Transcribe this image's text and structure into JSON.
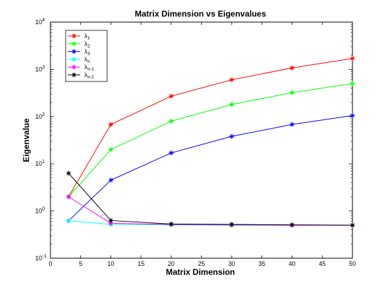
{
  "chart_data": {
    "type": "line",
    "title": "Matrix Dimension vs Eigenvalues",
    "xlabel": "Matrix Dimension",
    "ylabel": "Eigenvalue",
    "xlim": [
      0,
      50
    ],
    "ylim": [
      0.1,
      10000
    ],
    "yscale": "log",
    "grid": false,
    "legend_position": "top-left",
    "x_ticks": [
      0,
      5,
      10,
      15,
      20,
      25,
      30,
      35,
      40,
      45,
      50
    ],
    "y_ticks": [
      {
        "value": 0.1,
        "base": "10",
        "exp": "-1"
      },
      {
        "value": 1,
        "base": "10",
        "exp": "0"
      },
      {
        "value": 10,
        "base": "10",
        "exp": "1"
      },
      {
        "value": 100,
        "base": "10",
        "exp": "2"
      },
      {
        "value": 1000,
        "base": "10",
        "exp": "3"
      },
      {
        "value": 10000,
        "base": "10",
        "exp": "4"
      }
    ],
    "x": [
      3,
      10,
      20,
      30,
      40,
      50
    ],
    "series": [
      {
        "name": "λ1",
        "symbol": "λ",
        "subscript": "1",
        "color": "#ff0000",
        "values": [
          2.0,
          68,
          270,
          600,
          1070,
          1700
        ]
      },
      {
        "name": "λ2",
        "symbol": "λ",
        "subscript": "2",
        "color": "#00ff00",
        "values": [
          2.0,
          20,
          80,
          180,
          320,
          500
        ]
      },
      {
        "name": "λ3",
        "symbol": "λ",
        "subscript": "3",
        "color": "#0000ff",
        "values": [
          0.62,
          4.5,
          17,
          38,
          68,
          105
        ]
      },
      {
        "name": "λn",
        "symbol": "λ",
        "subscript": "n",
        "color": "#00ffff",
        "values": [
          0.62,
          0.52,
          0.51,
          0.5,
          0.5,
          0.5
        ]
      },
      {
        "name": "λn-1",
        "symbol": "λ",
        "subscript": "n-1",
        "color": "#ff00ff",
        "values": [
          2.0,
          0.55,
          0.52,
          0.51,
          0.5,
          0.5
        ]
      },
      {
        "name": "λn-2",
        "symbol": "λ",
        "subscript": "n-2",
        "color": "#000000",
        "values": [
          6.3,
          0.63,
          0.53,
          0.52,
          0.51,
          0.5
        ]
      }
    ]
  }
}
